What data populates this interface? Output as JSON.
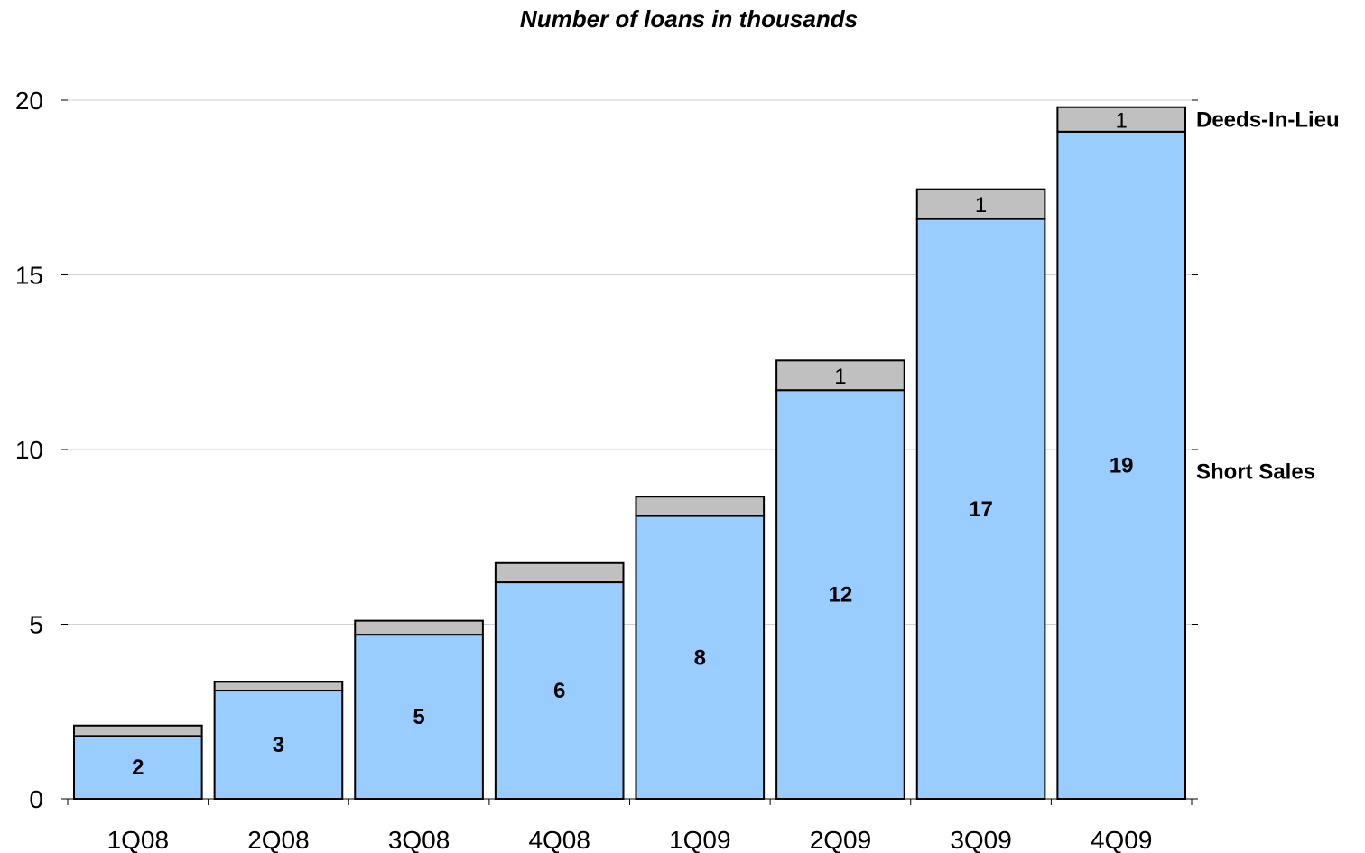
{
  "chart_data": {
    "type": "bar",
    "stacked": true,
    "title": "Number of loans in thousands",
    "xlabel": "",
    "ylabel": "",
    "categories": [
      "1Q08",
      "2Q08",
      "3Q08",
      "4Q08",
      "1Q09",
      "2Q09",
      "3Q09",
      "4Q09"
    ],
    "series": [
      {
        "name": "Short Sales",
        "color": "#99ccff",
        "values": [
          1.8,
          3.1,
          4.7,
          6.2,
          8.1,
          11.7,
          16.6,
          19.1
        ],
        "labels": [
          "2",
          "3",
          "5",
          "6",
          "8",
          "12",
          "17",
          "19"
        ]
      },
      {
        "name": "Deeds-In-Lieu",
        "color": "#c0c0c0",
        "values": [
          0.3,
          0.25,
          0.4,
          0.55,
          0.55,
          0.85,
          0.85,
          0.7
        ],
        "labels": [
          "",
          "",
          "",
          "",
          "",
          "1",
          "1",
          "1"
        ]
      }
    ],
    "ylim": [
      0,
      20
    ],
    "yticks": [
      "0",
      "5",
      "10",
      "15",
      "20"
    ],
    "grid": true,
    "legend": "right"
  }
}
